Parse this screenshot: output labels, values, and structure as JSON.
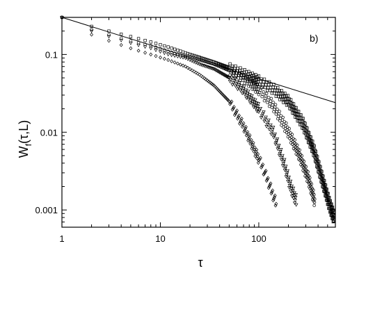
{
  "chart_data": {
    "type": "scatter",
    "title": "",
    "panel_label": "b)",
    "xlabel": "τ",
    "ylabel_main": "W",
    "ylabel_sub": "f",
    "ylabel_rest": "(τ,L)",
    "x_scale": "log",
    "y_scale": "log",
    "xlim": [
      1,
      600
    ],
    "ylim": [
      0.0006,
      0.3
    ],
    "x_ticks": [
      {
        "value": 1,
        "label": "1"
      },
      {
        "value": 10,
        "label": "10"
      },
      {
        "value": 100,
        "label": "100"
      }
    ],
    "y_ticks": [
      {
        "value": 0.001,
        "label": "0.001"
      },
      {
        "value": 0.01,
        "label": "0.01"
      },
      {
        "value": 0.1,
        "label": "0.1"
      }
    ],
    "grid": false,
    "legend": "none",
    "colors": {
      "marker": "#000000",
      "line": "#000000",
      "axes": "#000000"
    },
    "reference_line": {
      "type": "power-law",
      "x": [
        1,
        600
      ],
      "y": [
        0.3,
        0.024
      ]
    },
    "series": [
      {
        "marker": "diamond",
        "x": [
          1,
          2,
          3,
          5,
          8,
          12,
          18,
          25,
          35,
          50,
          70,
          90,
          110,
          130,
          150
        ],
        "y": [
          0.3,
          0.18,
          0.15,
          0.12,
          0.1,
          0.085,
          0.07,
          0.055,
          0.04,
          0.025,
          0.012,
          0.006,
          0.0035,
          0.002,
          0.0012
        ]
      },
      {
        "marker": "triangle-down",
        "x": [
          1,
          2,
          3,
          5,
          8,
          12,
          18,
          25,
          35,
          50,
          70,
          100,
          140,
          180,
          210,
          240
        ],
        "y": [
          0.3,
          0.2,
          0.17,
          0.14,
          0.12,
          0.1,
          0.09,
          0.075,
          0.065,
          0.05,
          0.035,
          0.02,
          0.01,
          0.004,
          0.002,
          0.0013
        ]
      },
      {
        "marker": "circle",
        "x": [
          1,
          2,
          3,
          5,
          8,
          12,
          18,
          25,
          35,
          50,
          70,
          100,
          140,
          200,
          260,
          320,
          370
        ],
        "y": [
          0.3,
          0.21,
          0.18,
          0.15,
          0.13,
          0.11,
          0.095,
          0.085,
          0.075,
          0.062,
          0.05,
          0.035,
          0.022,
          0.01,
          0.005,
          0.0025,
          0.0013
        ]
      },
      {
        "marker": "square",
        "x": [
          1,
          2,
          3,
          5,
          8,
          12,
          18,
          25,
          35,
          50,
          70,
          100,
          140,
          200,
          280,
          360,
          440,
          520,
          580
        ],
        "y": [
          0.3,
          0.23,
          0.2,
          0.17,
          0.145,
          0.125,
          0.105,
          0.092,
          0.08,
          0.068,
          0.057,
          0.046,
          0.036,
          0.025,
          0.013,
          0.006,
          0.0025,
          0.0012,
          0.0008
        ]
      }
    ]
  }
}
